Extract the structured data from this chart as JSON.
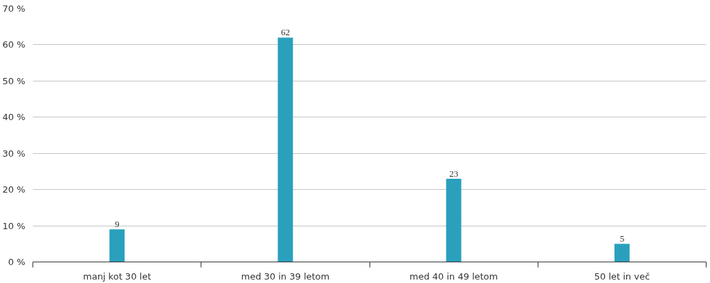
{
  "chart_data": {
    "type": "bar",
    "categories": [
      "manj kot 30 let",
      "med 30 in 39 letom",
      "med 40 in 49 letom",
      "50 let in več"
    ],
    "values": [
      9,
      62,
      23,
      5
    ],
    "color": "#2aa0bd",
    "ylim": [
      0,
      70
    ],
    "yticks": [
      {
        "value": 0,
        "label": "0 %"
      },
      {
        "value": 10,
        "label": "10 %"
      },
      {
        "value": 20,
        "label": "20 %"
      },
      {
        "value": 30,
        "label": "30 %"
      },
      {
        "value": 40,
        "label": "40 %"
      },
      {
        "value": 50,
        "label": "50 %"
      },
      {
        "value": 60,
        "label": "60 %"
      },
      {
        "value": 70,
        "label": "70 %"
      }
    ],
    "grid": "y",
    "data_labels": true
  }
}
